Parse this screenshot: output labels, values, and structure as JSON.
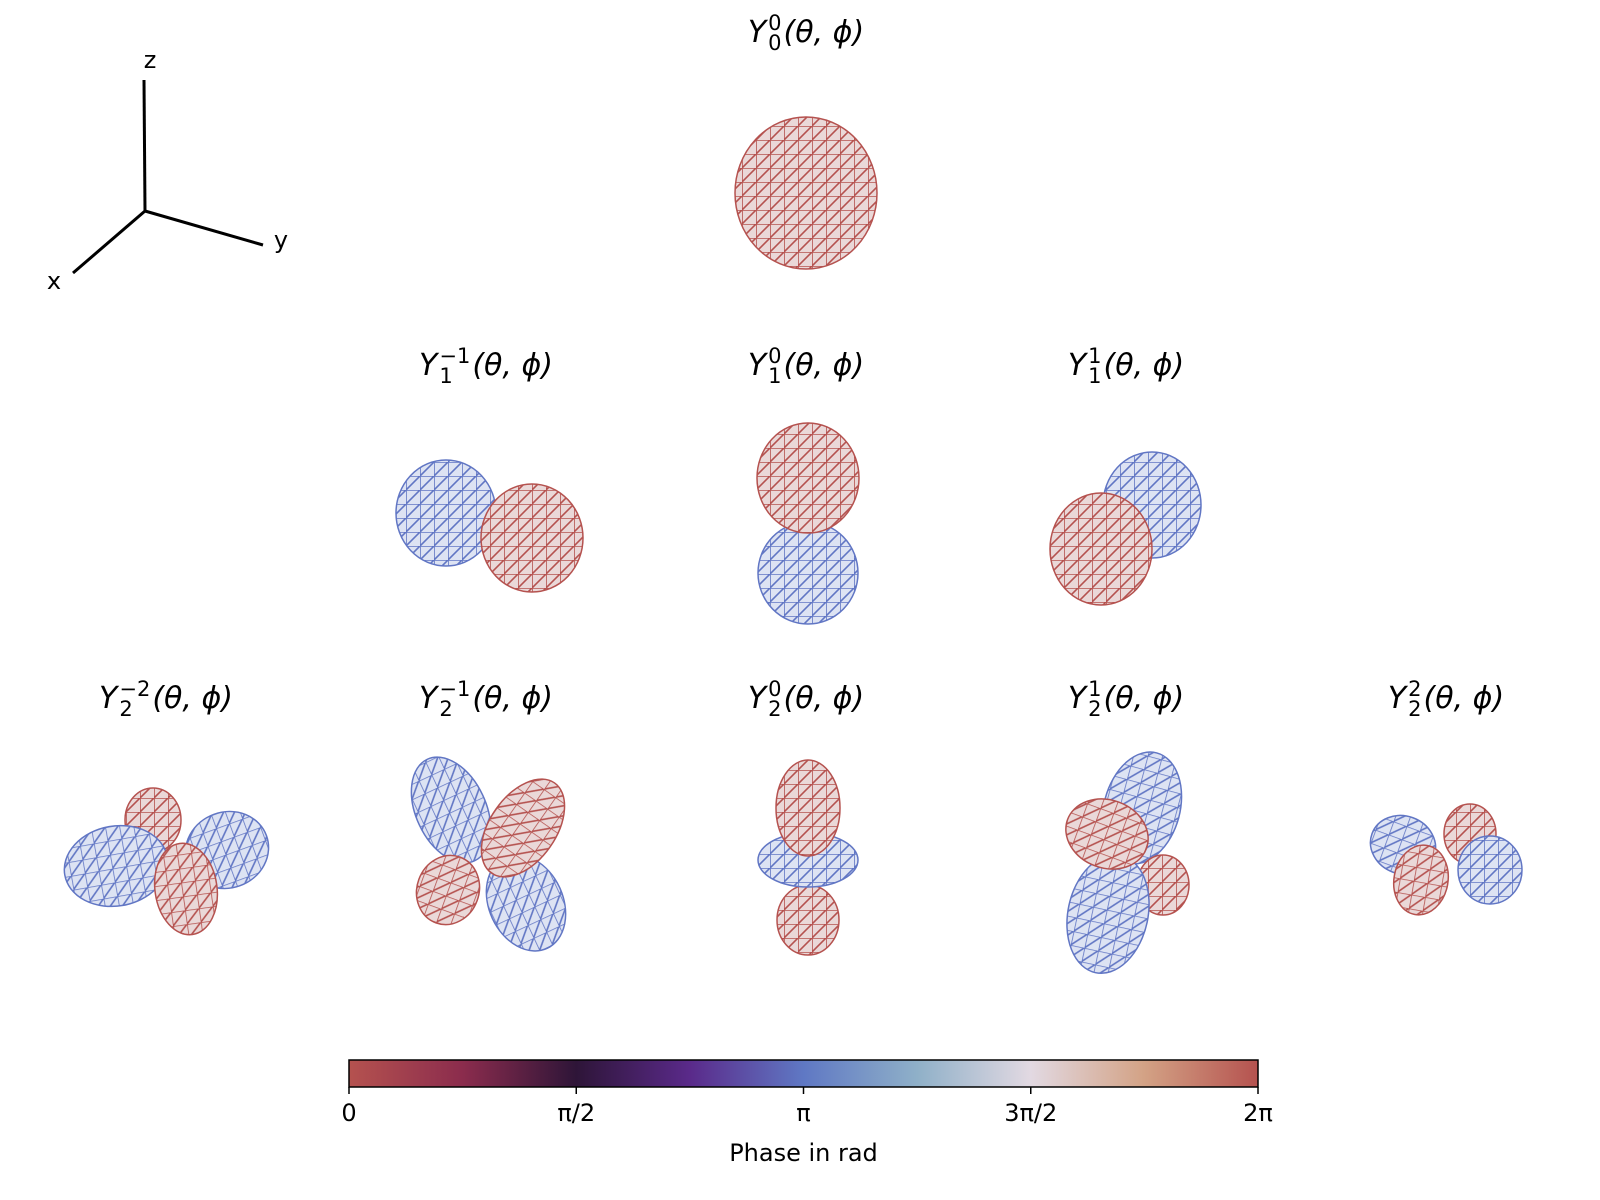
{
  "axes_glyph": {
    "z": "z",
    "y": "y",
    "x": "x"
  },
  "panels": [
    {
      "symbol": "Y",
      "sup": "0",
      "sub": "0",
      "args": "(θ, ϕ)"
    },
    {
      "symbol": "Y",
      "sup": "−1",
      "sub": "1",
      "args": "(θ, ϕ)"
    },
    {
      "symbol": "Y",
      "sup": "0",
      "sub": "1",
      "args": "(θ, ϕ)"
    },
    {
      "symbol": "Y",
      "sup": "1",
      "sub": "1",
      "args": "(θ, ϕ)"
    },
    {
      "symbol": "Y",
      "sup": "−2",
      "sub": "2",
      "args": "(θ, ϕ)"
    },
    {
      "symbol": "Y",
      "sup": "−1",
      "sub": "2",
      "args": "(θ, ϕ)"
    },
    {
      "symbol": "Y",
      "sup": "0",
      "sub": "2",
      "args": "(θ, ϕ)"
    },
    {
      "symbol": "Y",
      "sup": "1",
      "sub": "2",
      "args": "(θ, ϕ)"
    },
    {
      "symbol": "Y",
      "sup": "2",
      "sub": "2",
      "args": "(θ, ϕ)"
    }
  ],
  "colorbar": {
    "label": "Phase in rad",
    "lim": [
      0,
      6.2832
    ],
    "ticks": [
      0,
      {
        "value": 1.5708,
        "label": "π/2"
      },
      {
        "value": 3.1416,
        "label": "π"
      },
      {
        "value": 4.7124,
        "label": "3π/2"
      },
      {
        "value": 6.2832,
        "label": "2π"
      }
    ],
    "colors": [
      "#b5524f",
      "#8b2c4d",
      "#2e1538",
      "#5a2a8a",
      "#5f78c4",
      "#8fb0c8",
      "#e2d9e2",
      "#d3a285",
      "#b5524f"
    ]
  }
}
